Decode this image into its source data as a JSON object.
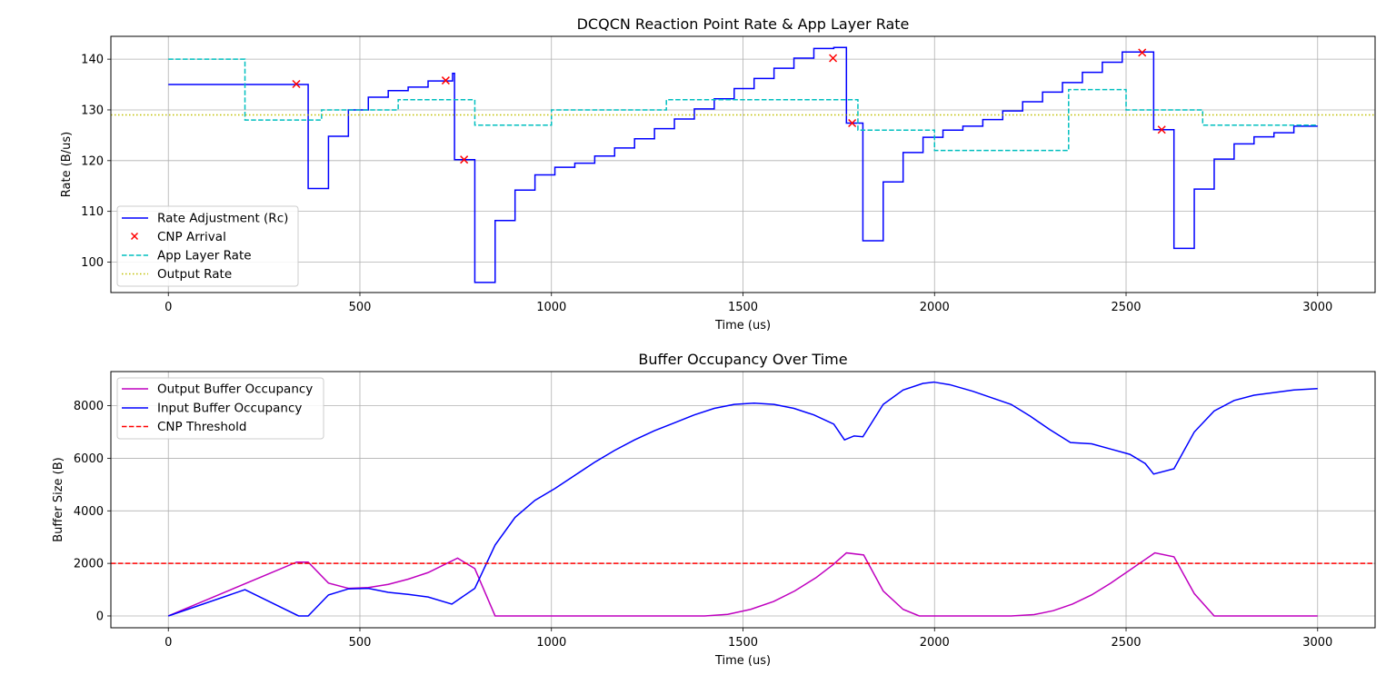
{
  "chart_data": [
    {
      "type": "line",
      "title": "DCQCN Reaction Point Rate & App Layer Rate",
      "xlabel": "Time (us)",
      "ylabel": "Rate (B/us)",
      "xlim": [
        -150,
        3150
      ],
      "ylim": [
        94,
        144.5
      ],
      "xticks": [
        0,
        500,
        1000,
        1500,
        2000,
        2500,
        3000
      ],
      "yticks": [
        100,
        110,
        120,
        130,
        140
      ],
      "grid": true,
      "legend_position": "lower-left",
      "series": [
        {
          "name": "Rate Adjustment (Rc)",
          "color": "#0000ff",
          "style": "steps-post",
          "points": [
            [
              0,
              135
            ],
            [
              365,
              135
            ],
            [
              365,
              114.5
            ],
            [
              418,
              114.5
            ],
            [
              418,
              124.8
            ],
            [
              470,
              124.8
            ],
            [
              470,
              130
            ],
            [
              522,
              130
            ],
            [
              522,
              132.5
            ],
            [
              574,
              132.5
            ],
            [
              574,
              133.8
            ],
            [
              626,
              133.8
            ],
            [
              626,
              134.5
            ],
            [
              678,
              134.5
            ],
            [
              678,
              135.7
            ],
            [
              742,
              135.7
            ],
            [
              742,
              137.2
            ],
            [
              747,
              137.2
            ],
            [
              747,
              120.2
            ],
            [
              800,
              120.2
            ],
            [
              800,
              96
            ],
            [
              853,
              96
            ],
            [
              853,
              108.2
            ],
            [
              905,
              108.2
            ],
            [
              905,
              114.2
            ],
            [
              957,
              114.2
            ],
            [
              957,
              117.2
            ],
            [
              1009,
              117.2
            ],
            [
              1009,
              118.7
            ],
            [
              1061,
              118.7
            ],
            [
              1061,
              119.5
            ],
            [
              1113,
              119.5
            ],
            [
              1113,
              120.9
            ],
            [
              1165,
              120.9
            ],
            [
              1165,
              122.5
            ],
            [
              1217,
              122.5
            ],
            [
              1217,
              124.3
            ],
            [
              1269,
              124.3
            ],
            [
              1269,
              126.3
            ],
            [
              1321,
              126.3
            ],
            [
              1321,
              128.2
            ],
            [
              1373,
              128.2
            ],
            [
              1373,
              130.2
            ],
            [
              1425,
              130.2
            ],
            [
              1425,
              132.2
            ],
            [
              1477,
              132.2
            ],
            [
              1477,
              134.2
            ],
            [
              1529,
              134.2
            ],
            [
              1529,
              136.2
            ],
            [
              1581,
              136.2
            ],
            [
              1581,
              138.2
            ],
            [
              1633,
              138.2
            ],
            [
              1633,
              140.2
            ],
            [
              1685,
              140.2
            ],
            [
              1685,
              142.1
            ],
            [
              1737,
              142.1
            ],
            [
              1737,
              142.3
            ],
            [
              1770,
              142.3
            ],
            [
              1770,
              127.4
            ],
            [
              1813,
              127.4
            ],
            [
              1813,
              104.2
            ],
            [
              1866,
              104.2
            ],
            [
              1866,
              115.8
            ],
            [
              1918,
              115.8
            ],
            [
              1918,
              121.6
            ],
            [
              1970,
              121.6
            ],
            [
              1970,
              124.6
            ],
            [
              2022,
              124.6
            ],
            [
              2022,
              126
            ],
            [
              2074,
              126
            ],
            [
              2074,
              126.8
            ],
            [
              2126,
              126.8
            ],
            [
              2126,
              128.1
            ],
            [
              2178,
              128.1
            ],
            [
              2178,
              129.8
            ],
            [
              2230,
              129.8
            ],
            [
              2230,
              131.6
            ],
            [
              2282,
              131.6
            ],
            [
              2282,
              133.5
            ],
            [
              2334,
              133.5
            ],
            [
              2334,
              135.4
            ],
            [
              2386,
              135.4
            ],
            [
              2386,
              137.4
            ],
            [
              2438,
              137.4
            ],
            [
              2438,
              139.4
            ],
            [
              2490,
              139.4
            ],
            [
              2490,
              141.4
            ],
            [
              2572,
              141.4
            ],
            [
              2572,
              126.1
            ],
            [
              2625,
              126.1
            ],
            [
              2625,
              102.7
            ],
            [
              2678,
              102.7
            ],
            [
              2678,
              114.4
            ],
            [
              2730,
              114.4
            ],
            [
              2730,
              120.3
            ],
            [
              2782,
              120.3
            ],
            [
              2782,
              123.3
            ],
            [
              2834,
              123.3
            ],
            [
              2834,
              124.7
            ],
            [
              2886,
              124.7
            ],
            [
              2886,
              125.5
            ],
            [
              2938,
              125.5
            ],
            [
              2938,
              126.8
            ],
            [
              3000,
              126.8
            ]
          ]
        },
        {
          "name": "CNP Arrival",
          "color": "#ff0000",
          "marker": "x",
          "points": [
            [
              334,
              135.1
            ],
            [
              724,
              135.8
            ],
            [
              772,
              120.2
            ],
            [
              1735,
              140.2
            ],
            [
              1785,
              127.4
            ],
            [
              2542,
              141.3
            ],
            [
              2593,
              126.1
            ]
          ]
        },
        {
          "name": "App Layer Rate",
          "color": "#00bfbf",
          "style": "dashed",
          "points": [
            [
              0,
              140
            ],
            [
              200,
              140
            ],
            [
              200,
              128
            ],
            [
              400,
              128
            ],
            [
              400,
              130
            ],
            [
              600,
              130
            ],
            [
              600,
              132
            ],
            [
              800,
              132
            ],
            [
              800,
              127
            ],
            [
              1000,
              127
            ],
            [
              1000,
              130
            ],
            [
              1300,
              130
            ],
            [
              1300,
              132
            ],
            [
              1800,
              132
            ],
            [
              1800,
              126
            ],
            [
              2000,
              126
            ],
            [
              2000,
              122
            ],
            [
              2350,
              122
            ],
            [
              2350,
              134
            ],
            [
              2500,
              134
            ],
            [
              2500,
              130
            ],
            [
              2700,
              130
            ],
            [
              2700,
              127
            ],
            [
              3000,
              127
            ]
          ]
        },
        {
          "name": "Output Rate",
          "color": "#bfbf00",
          "style": "dotted",
          "points": [
            [
              -150,
              129
            ],
            [
              3150,
              129
            ]
          ]
        }
      ]
    },
    {
      "type": "line",
      "title": "Buffer Occupancy Over Time",
      "xlabel": "Time (us)",
      "ylabel": "Buffer Size (B)",
      "xlim": [
        -150,
        3150
      ],
      "ylim": [
        -450,
        9300
      ],
      "xticks": [
        0,
        500,
        1000,
        1500,
        2000,
        2500,
        3000
      ],
      "yticks": [
        0,
        2000,
        4000,
        6000,
        8000
      ],
      "grid": true,
      "legend_position": "upper-left",
      "series": [
        {
          "name": "Output Buffer Occupancy",
          "color": "#bf00bf",
          "style": "solid",
          "points": [
            [
              0,
              0
            ],
            [
              335,
              2050
            ],
            [
              365,
              2050
            ],
            [
              418,
              1250
            ],
            [
              470,
              1050
            ],
            [
              522,
              1080
            ],
            [
              574,
              1200
            ],
            [
              626,
              1400
            ],
            [
              678,
              1650
            ],
            [
              720,
              1950
            ],
            [
              755,
              2200
            ],
            [
              800,
              1800
            ],
            [
              853,
              0
            ],
            [
              1400,
              0
            ],
            [
              1460,
              60
            ],
            [
              1520,
              250
            ],
            [
              1580,
              550
            ],
            [
              1635,
              950
            ],
            [
              1690,
              1450
            ],
            [
              1735,
              1950
            ],
            [
              1770,
              2400
            ],
            [
              1815,
              2320
            ],
            [
              1866,
              950
            ],
            [
              1918,
              250
            ],
            [
              1960,
              0
            ],
            [
              2200,
              0
            ],
            [
              2260,
              50
            ],
            [
              2310,
              200
            ],
            [
              2360,
              450
            ],
            [
              2410,
              800
            ],
            [
              2460,
              1250
            ],
            [
              2505,
              1700
            ],
            [
              2540,
              2050
            ],
            [
              2575,
              2400
            ],
            [
              2625,
              2250
            ],
            [
              2678,
              850
            ],
            [
              2730,
              0
            ],
            [
              3000,
              0
            ]
          ]
        },
        {
          "name": "Input Buffer Occupancy",
          "color": "#0000ff",
          "style": "solid",
          "points": [
            [
              0,
              0
            ],
            [
              200,
              1000
            ],
            [
              340,
              0
            ],
            [
              365,
              0
            ],
            [
              418,
              800
            ],
            [
              470,
              1030
            ],
            [
              522,
              1050
            ],
            [
              574,
              900
            ],
            [
              626,
              820
            ],
            [
              678,
              720
            ],
            [
              740,
              450
            ],
            [
              800,
              1050
            ],
            [
              853,
              2700
            ],
            [
              905,
              3750
            ],
            [
              957,
              4400
            ],
            [
              1009,
              4850
            ],
            [
              1061,
              5350
            ],
            [
              1113,
              5850
            ],
            [
              1165,
              6300
            ],
            [
              1217,
              6700
            ],
            [
              1269,
              7050
            ],
            [
              1321,
              7350
            ],
            [
              1373,
              7650
            ],
            [
              1425,
              7900
            ],
            [
              1477,
              8050
            ],
            [
              1529,
              8100
            ],
            [
              1581,
              8050
            ],
            [
              1633,
              7900
            ],
            [
              1685,
              7650
            ],
            [
              1737,
              7300
            ],
            [
              1765,
              6700
            ],
            [
              1790,
              6850
            ],
            [
              1813,
              6820
            ],
            [
              1866,
              8050
            ],
            [
              1918,
              8600
            ],
            [
              1970,
              8850
            ],
            [
              1998,
              8900
            ],
            [
              2040,
              8800
            ],
            [
              2100,
              8550
            ],
            [
              2150,
              8300
            ],
            [
              2200,
              8050
            ],
            [
              2250,
              7600
            ],
            [
              2300,
              7100
            ],
            [
              2355,
              6600
            ],
            [
              2410,
              6550
            ],
            [
              2460,
              6350
            ],
            [
              2510,
              6150
            ],
            [
              2550,
              5800
            ],
            [
              2572,
              5400
            ],
            [
              2625,
              5600
            ],
            [
              2678,
              7000
            ],
            [
              2730,
              7800
            ],
            [
              2782,
              8200
            ],
            [
              2834,
              8400
            ],
            [
              2886,
              8500
            ],
            [
              2938,
              8600
            ],
            [
              3000,
              8650
            ]
          ]
        },
        {
          "name": "CNP Threshold",
          "color": "#ff0000",
          "style": "dashed",
          "points": [
            [
              -150,
              2000
            ],
            [
              3150,
              2000
            ]
          ]
        }
      ]
    }
  ]
}
